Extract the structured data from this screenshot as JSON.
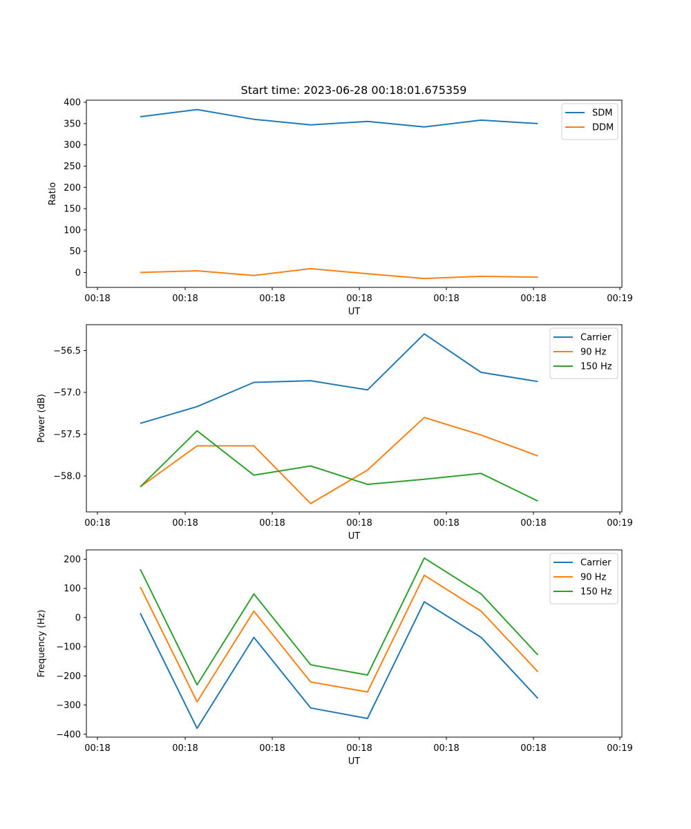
{
  "chart_data": [
    {
      "type": "line",
      "title": "Start time: 2023-06-28 00:18:01.675359",
      "xlabel": "UT",
      "ylabel": "Ratio",
      "x_tick_labels": [
        "00:18",
        "00:18",
        "00:18",
        "00:18",
        "00:18",
        "00:18",
        "00:18"
      ],
      "x_tick_last_label": "00:19",
      "y_ticks": [
        0,
        50,
        100,
        150,
        200,
        250,
        300,
        350,
        400
      ],
      "ylim": [
        -35,
        405
      ],
      "legend": "top-right",
      "series": [
        {
          "name": "SDM",
          "color": "#1f77b4",
          "values": [
            366,
            383,
            360,
            347,
            355,
            342,
            358,
            350
          ]
        },
        {
          "name": "DDM",
          "color": "#ff7f0e",
          "values": [
            0,
            4,
            -7,
            9,
            -3,
            -14,
            -9,
            -11
          ]
        }
      ]
    },
    {
      "type": "line",
      "title": "",
      "xlabel": "UT",
      "ylabel": "Power (dB)",
      "x_tick_labels": [
        "00:18",
        "00:18",
        "00:18",
        "00:18",
        "00:18",
        "00:18",
        "00:18"
      ],
      "x_tick_last_label": "00:19",
      "y_ticks": [
        -58.0,
        -57.5,
        -57.0,
        -56.5
      ],
      "y_tick_labels": [
        "−58.0",
        "−57.5",
        "−57.0",
        "−56.5"
      ],
      "ylim": [
        -58.43,
        -56.19
      ],
      "legend": "top-right",
      "series": [
        {
          "name": "Carrier",
          "color": "#1f77b4",
          "values": [
            -57.37,
            -57.17,
            -56.88,
            -56.86,
            -56.97,
            -56.3,
            -56.76,
            -56.87
          ]
        },
        {
          "name": "90 Hz",
          "color": "#ff7f0e",
          "values": [
            -58.13,
            -57.64,
            -57.64,
            -58.33,
            -57.93,
            -57.3,
            -57.51,
            -57.76
          ]
        },
        {
          "name": "150 Hz",
          "color": "#2ca02c",
          "values": [
            -58.13,
            -57.46,
            -57.99,
            -57.88,
            -58.1,
            -58.04,
            -57.97,
            -58.3
          ]
        }
      ]
    },
    {
      "type": "line",
      "title": "",
      "xlabel": "UT",
      "ylabel": "Frequency (Hz)",
      "x_tick_labels": [
        "00:18",
        "00:18",
        "00:18",
        "00:18",
        "00:18",
        "00:18",
        "00:18"
      ],
      "x_tick_last_label": "00:19",
      "y_ticks": [
        -400,
        -300,
        -200,
        -100,
        0,
        100,
        200
      ],
      "y_tick_labels": [
        "−400",
        "−300",
        "−200",
        "−100",
        "0",
        "100",
        "200"
      ],
      "ylim": [
        -410,
        232
      ],
      "legend": "top-right",
      "series": [
        {
          "name": "Carrier",
          "color": "#1f77b4",
          "values": [
            15,
            -380,
            -68,
            -310,
            -346,
            54,
            -68,
            -277
          ]
        },
        {
          "name": "90 Hz",
          "color": "#ff7f0e",
          "values": [
            105,
            -289,
            22,
            -221,
            -255,
            145,
            22,
            -186
          ]
        },
        {
          "name": "150 Hz",
          "color": "#2ca02c",
          "values": [
            166,
            -231,
            81,
            -162,
            -197,
            204,
            81,
            -128
          ]
        }
      ]
    }
  ]
}
